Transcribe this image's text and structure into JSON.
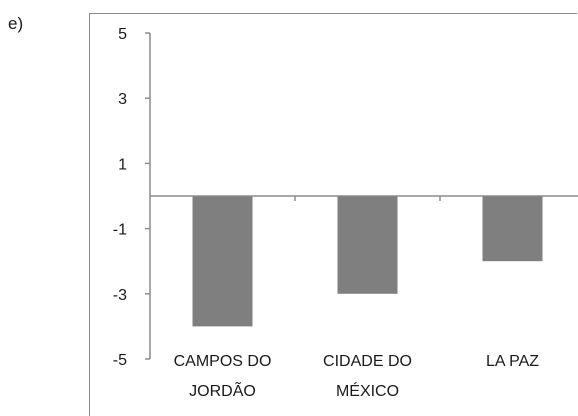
{
  "question_label": "e)",
  "chart_data": {
    "type": "bar",
    "categories": [
      [
        "CAMPOS DO",
        "JORDÃO"
      ],
      [
        "CIDADE DO",
        "MÉXICO"
      ],
      [
        "LA PAZ"
      ]
    ],
    "values": [
      -4,
      -3,
      -2
    ],
    "yticks": [
      5,
      3,
      1,
      -1,
      -3,
      -5
    ],
    "ylim": [
      -5,
      5
    ],
    "title": "",
    "xlabel": "",
    "ylabel": "",
    "grid": false,
    "bar_color": "#7f7f7f",
    "axis_color": "#8c8c8c"
  }
}
